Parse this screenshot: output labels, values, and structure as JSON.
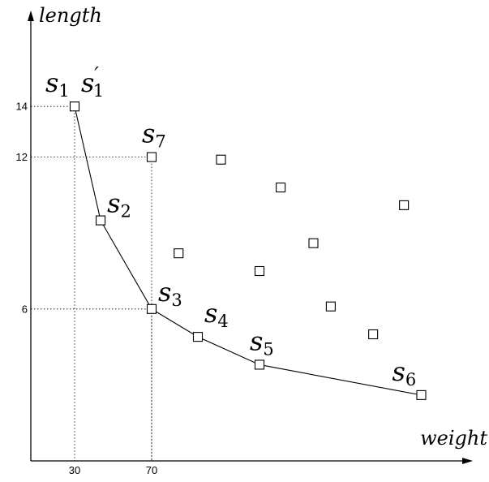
{
  "chart_data": {
    "type": "scatter",
    "xlabel": "weight",
    "ylabel": "length",
    "xticks": [
      {
        "value": 30,
        "label": "30"
      },
      {
        "value": 70,
        "label": "70"
      }
    ],
    "yticks": [
      {
        "value": 14,
        "label": "14"
      },
      {
        "value": 12,
        "label": "12"
      },
      {
        "value": 6,
        "label": "6"
      }
    ],
    "points": [
      {
        "id": "s1",
        "x": 30,
        "y": 14,
        "frontier": true
      },
      {
        "id": "s2",
        "x": 43.5,
        "y": 9.5,
        "frontier": true
      },
      {
        "id": "s3",
        "x": 70,
        "y": 6,
        "frontier": true
      },
      {
        "id": "s4",
        "x": 94,
        "y": 4.9,
        "frontier": true
      },
      {
        "id": "s5",
        "x": 126,
        "y": 3.8,
        "frontier": true
      },
      {
        "id": "s6",
        "x": 210,
        "y": 2.6,
        "frontier": true
      },
      {
        "id": "s7",
        "x": 70,
        "y": 12,
        "frontier": false
      },
      {
        "id": "p8",
        "x": 106,
        "y": 11.9,
        "frontier": false
      },
      {
        "id": "p9",
        "x": 137,
        "y": 10.8,
        "frontier": false
      },
      {
        "id": "p10",
        "x": 84,
        "y": 8.2,
        "frontier": false
      },
      {
        "id": "p11",
        "x": 126,
        "y": 7.5,
        "frontier": false
      },
      {
        "id": "p12",
        "x": 154,
        "y": 8.6,
        "frontier": false
      },
      {
        "id": "p13",
        "x": 201,
        "y": 10.1,
        "frontier": false
      },
      {
        "id": "p14",
        "x": 163,
        "y": 6.1,
        "frontier": false
      },
      {
        "id": "p15",
        "x": 185,
        "y": 5.0,
        "frontier": false
      }
    ],
    "guides": [
      "s1",
      "s7",
      "s3"
    ],
    "point_labels": [
      {
        "point": "s1",
        "base": "s",
        "sub": "1",
        "prime": "",
        "anchor": "above-left"
      },
      {
        "point": "s1",
        "base": "s",
        "sub": "1",
        "prime": "′",
        "anchor": "above-right"
      },
      {
        "point": "s2",
        "base": "s",
        "sub": "2",
        "prime": "",
        "anchor": "right"
      },
      {
        "point": "s3",
        "base": "s",
        "sub": "3",
        "prime": "",
        "anchor": "right"
      },
      {
        "point": "s4",
        "base": "s",
        "sub": "4",
        "prime": "",
        "anchor": "above-right"
      },
      {
        "point": "s5",
        "base": "s",
        "sub": "5",
        "prime": "",
        "anchor": "above"
      },
      {
        "point": "s6",
        "base": "s",
        "sub": "6",
        "prime": "",
        "anchor": "above-left"
      },
      {
        "point": "s7",
        "base": "s",
        "sub": "7",
        "prime": "",
        "anchor": "above"
      }
    ],
    "grid": false,
    "legend": "none"
  }
}
